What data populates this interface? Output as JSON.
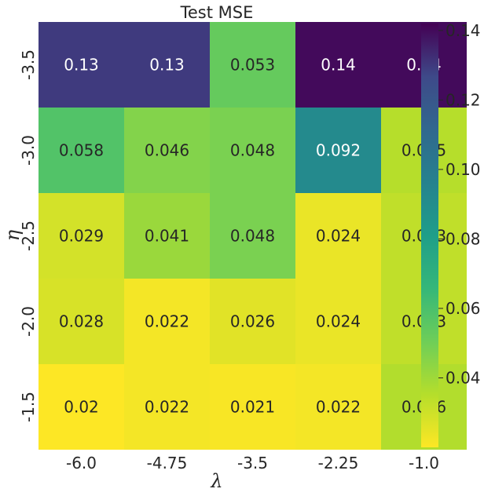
{
  "chart_data": {
    "type": "heatmap",
    "title": "Test MSE",
    "xlabel": "λ",
    "ylabel": "η",
    "x": [
      "-6.0",
      "-4.75",
      "-3.5",
      "-2.25",
      "-1.0"
    ],
    "y": [
      "-3.5",
      "-3.0",
      "-2.5",
      "-2.0",
      "-1.5"
    ],
    "values": [
      [
        0.13,
        0.13,
        0.053,
        0.14,
        0.14
      ],
      [
        0.058,
        0.046,
        0.048,
        0.092,
        0.035
      ],
      [
        0.029,
        0.041,
        0.048,
        0.024,
        0.033
      ],
      [
        0.028,
        0.022,
        0.026,
        0.024,
        0.033
      ],
      [
        0.02,
        0.022,
        0.021,
        0.022,
        0.036
      ]
    ],
    "labels": [
      [
        "0.13",
        "0.13",
        "0.053",
        "0.14",
        "0.14"
      ],
      [
        "0.058",
        "0.046",
        "0.048",
        "0.092",
        "0.035"
      ],
      [
        "0.029",
        "0.041",
        "0.048",
        "0.024",
        "0.033"
      ],
      [
        "0.028",
        "0.022",
        "0.026",
        "0.024",
        "0.033"
      ],
      [
        "0.02",
        "0.022",
        "0.021",
        "0.022",
        "0.036"
      ]
    ],
    "colormap": "viridis_r",
    "colorbar": {
      "min": 0.02,
      "max": 0.142,
      "ticks": [
        0.04,
        0.06,
        0.08,
        0.1,
        0.12,
        0.14
      ],
      "tick_labels": [
        "0.04",
        "0.06",
        "0.08",
        "0.10",
        "0.12",
        "0.14"
      ]
    }
  }
}
